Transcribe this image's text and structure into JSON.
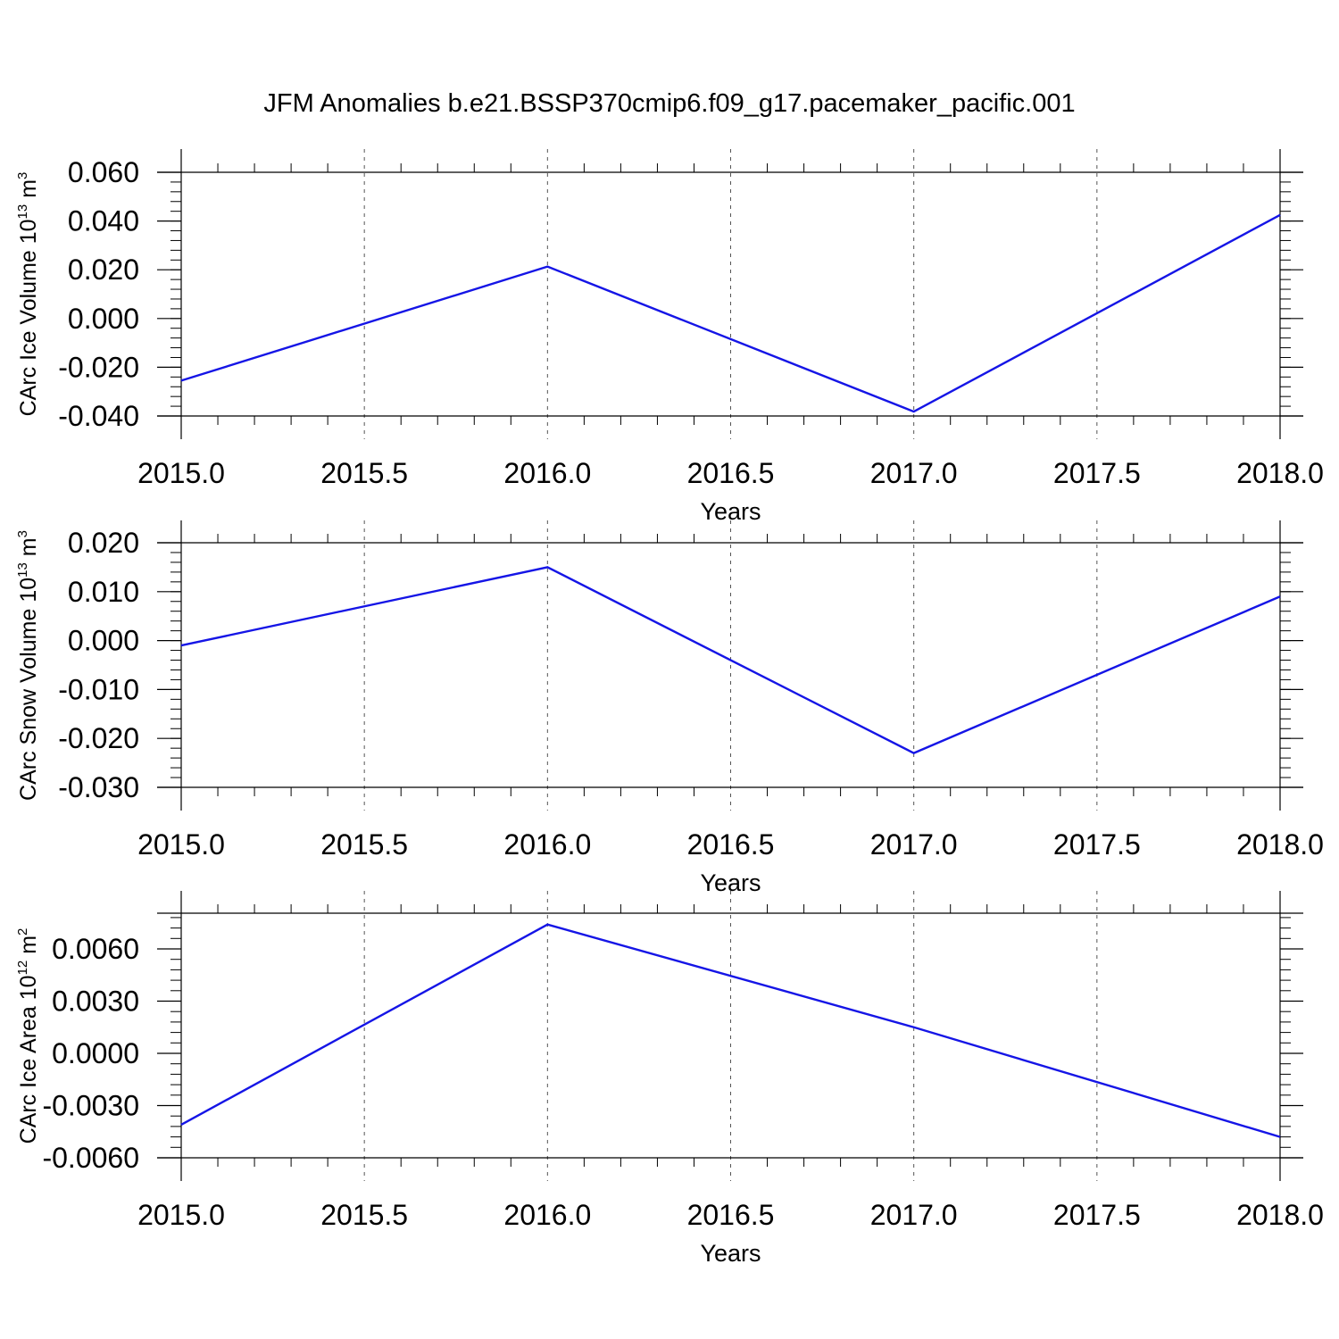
{
  "title": "JFM Anomalies b.e21.BSSP370cmip6.f09_g17.pacemaker_pacific.001",
  "colors": {
    "line": "#1515e6",
    "frame": "#000000",
    "grid": "#555555"
  },
  "chart_data": [
    {
      "type": "line",
      "x": [
        2015.0,
        2016.0,
        2017.0,
        2018.0
      ],
      "series": [
        {
          "values": [
            -0.0255,
            0.0213,
            -0.0382,
            0.0425
          ]
        }
      ],
      "ylim": [
        -0.04,
        0.07
      ],
      "yticks": [
        -0.04,
        -0.02,
        0.0,
        0.02,
        0.04,
        0.06
      ],
      "ytick_labels": [
        "-0.040",
        "-0.020",
        "0.000",
        "0.020",
        "0.040",
        "0.060"
      ],
      "xlim": [
        2015.0,
        2018.0
      ],
      "xticks": [
        2015.0,
        2015.5,
        2016.0,
        2016.5,
        2017.0,
        2017.5,
        2018.0
      ],
      "xtick_labels": [
        "2015.0",
        "2015.5",
        "2016.0",
        "2016.5",
        "2017.0",
        "2017.5",
        "2018.0"
      ],
      "xlabel": "Years",
      "ylabel": {
        "text": "CArc Ice Volume 10",
        "exp": "13",
        "unit": " m",
        "unit_exp": "3"
      },
      "grid": "vertical dashed at x ticks"
    },
    {
      "type": "line",
      "x": [
        2015.0,
        2016.0,
        2017.0,
        2018.0
      ],
      "series": [
        {
          "values": [
            -0.001,
            0.015,
            -0.023,
            0.009
          ]
        }
      ],
      "ylim": [
        -0.03,
        0.025
      ],
      "yticks": [
        -0.03,
        -0.02,
        -0.01,
        0.0,
        0.01,
        0.02
      ],
      "ytick_labels": [
        "-0.030",
        "-0.020",
        "-0.010",
        "0.000",
        "0.010",
        "0.020"
      ],
      "xlim": [
        2015.0,
        2018.0
      ],
      "xticks": [
        2015.0,
        2015.5,
        2016.0,
        2016.5,
        2017.0,
        2017.5,
        2018.0
      ],
      "xtick_labels": [
        "2015.0",
        "2015.5",
        "2016.0",
        "2016.5",
        "2017.0",
        "2017.5",
        "2018.0"
      ],
      "xlabel": "Years",
      "ylabel": {
        "text": "CArc Snow Volume 10",
        "exp": "13",
        "unit": " m",
        "unit_exp": "3"
      },
      "grid": "vertical dashed at x ticks"
    },
    {
      "type": "line",
      "x": [
        2015.0,
        2016.0,
        2017.0,
        2018.0
      ],
      "series": [
        {
          "values": [
            -0.0041,
            0.0074,
            0.0015,
            -0.0048
          ]
        }
      ],
      "ylim": [
        -0.006,
        0.008
      ],
      "yticks": [
        -0.006,
        -0.003,
        0.0,
        0.003,
        0.006
      ],
      "ytick_labels": [
        "-0.0060",
        "-0.0030",
        "0.0000",
        "0.0030",
        "0.0060"
      ],
      "xlim": [
        2015.0,
        2018.0
      ],
      "xticks": [
        2015.0,
        2015.5,
        2016.0,
        2016.5,
        2017.0,
        2017.5,
        2018.0
      ],
      "xtick_labels": [
        "2015.0",
        "2015.5",
        "2016.0",
        "2016.5",
        "2017.0",
        "2017.5",
        "2018.0"
      ],
      "xlabel": "Years",
      "ylabel": {
        "text": "CArc Ice Area 10",
        "exp": "12",
        "unit": " m",
        "unit_exp": "2"
      },
      "grid": "vertical dashed at x ticks"
    }
  ]
}
